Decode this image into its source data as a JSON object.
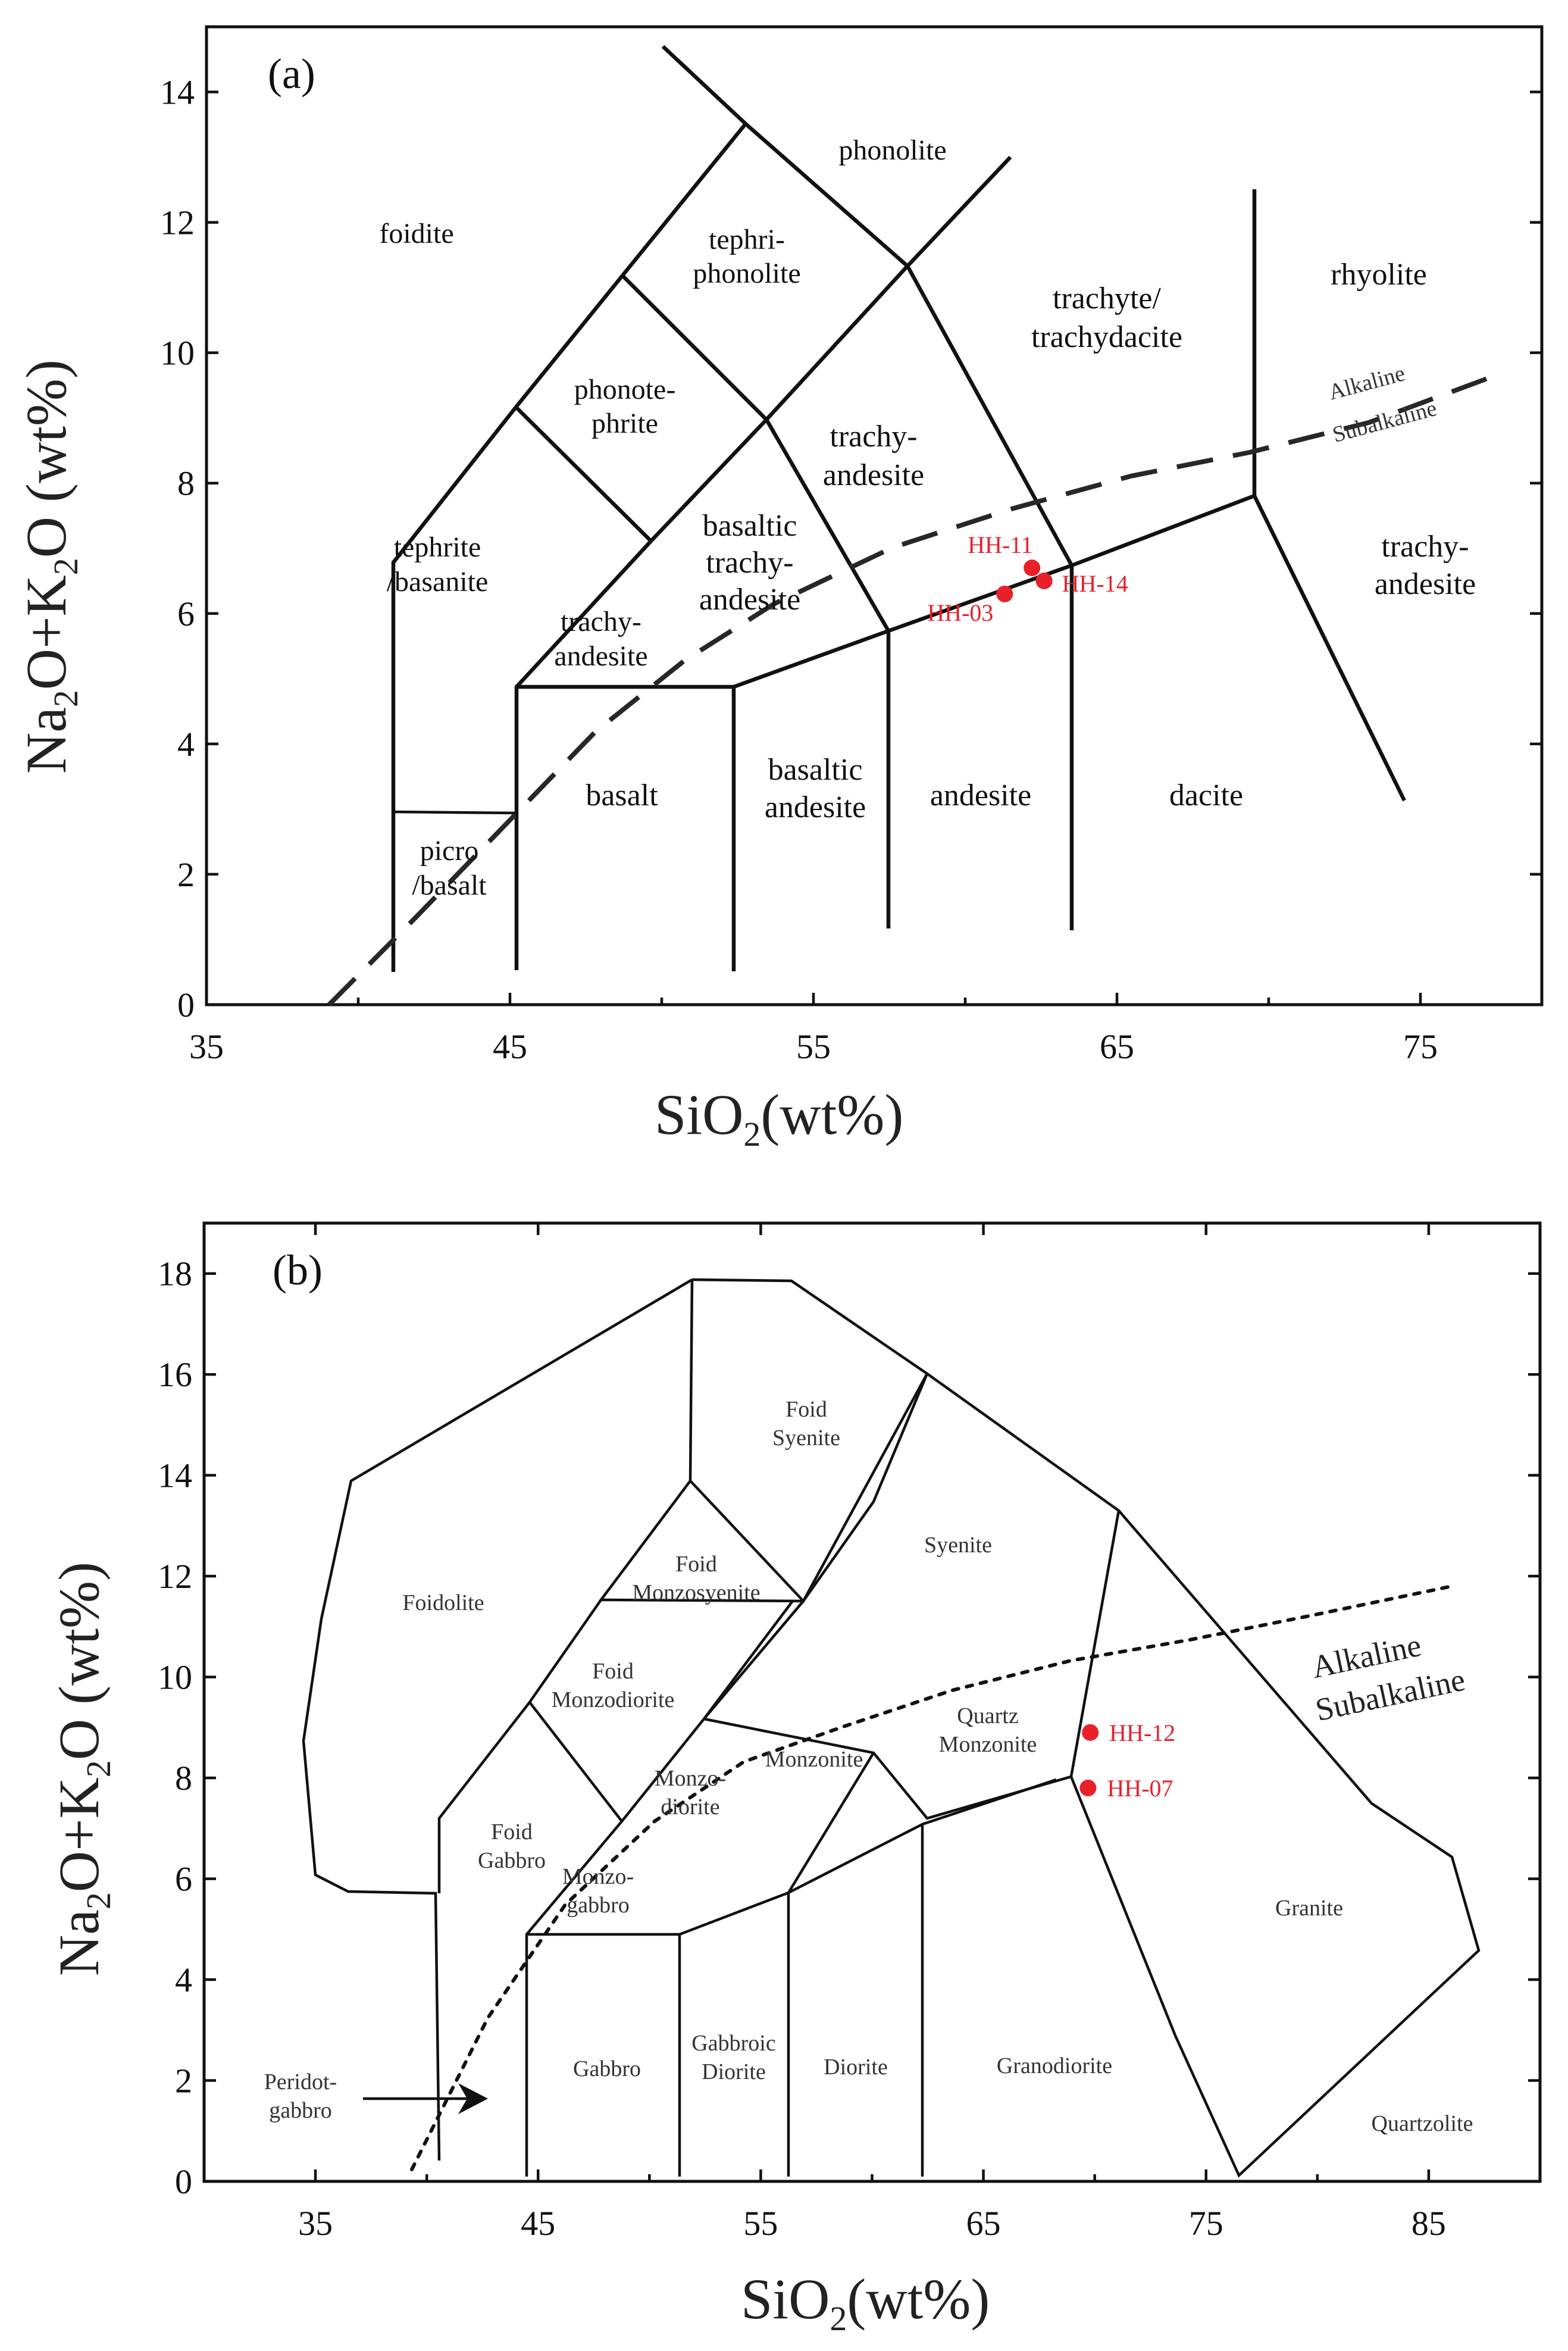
{
  "chart_data": [
    {
      "type": "scatter",
      "panel": "(a)",
      "xlabel_main": "SiO",
      "xlabel_sub": "2",
      "xlabel_unit": "(wt%)",
      "ylabel": {
        "t1": "Na",
        "s1": "2",
        "t2": "O+K",
        "s2": "2",
        "t3": "O (wt%)"
      },
      "xlim": [
        35,
        79
      ],
      "ylim": [
        0,
        15
      ],
      "xticks": [
        35,
        45,
        55,
        65,
        75
      ],
      "yticks": [
        0,
        2,
        4,
        6,
        8,
        10,
        12,
        14
      ],
      "regions": {
        "foidite": "foidite",
        "tephriphonolite_1": "tephri-",
        "tephriphonolite_2": "phonolite",
        "phonolite": "phonolite",
        "phonotephrite_1": "phonote-",
        "phonotephrite_2": "phrite",
        "trachyte_1": "trachyte/",
        "trachyte_2": "trachydacite",
        "rhyolite": "rhyolite",
        "trachyandesite_1": "trachy-",
        "trachyandesite_2": "andesite",
        "bta_1": "basaltic",
        "bta_2": "trachy-",
        "bta_3": "andesite",
        "tephrite_1": "tephrite",
        "tephrite_2": "/basanite",
        "trachybasalt_1": "trachy-",
        "trachybasalt_2": "andesite",
        "trachyandesite_r_1": "trachy-",
        "trachyandesite_r_2": "andesite",
        "basalt": "basalt",
        "basaltic_andesite_1": "basaltic",
        "basaltic_andesite_2": "andesite",
        "andesite": "andesite",
        "dacite": "dacite",
        "picro_1": "picro",
        "picro_2": "/basalt"
      },
      "series_labels": {
        "alkaline": "Alkaline",
        "subalkaline": "Subalkaline"
      },
      "samples": [
        {
          "name": "HH-11",
          "x": 62.2,
          "y": 6.7
        },
        {
          "name": "HH-14",
          "x": 62.6,
          "y": 6.5
        },
        {
          "name": "HH-03",
          "x": 61.3,
          "y": 6.3
        }
      ]
    },
    {
      "type": "scatter",
      "panel": "(b)",
      "xlabel_main": "SiO",
      "xlabel_sub": "2",
      "xlabel_unit": "(wt%)",
      "ylabel": {
        "t1": "Na",
        "s1": "2",
        "t2": "O+K",
        "s2": "2",
        "t3": "O (wt%)"
      },
      "xlim": [
        30,
        90
      ],
      "ylim": [
        0,
        19
      ],
      "xticks": [
        35,
        45,
        55,
        65,
        75,
        85
      ],
      "yticks": [
        0,
        2,
        4,
        6,
        8,
        10,
        12,
        14,
        16,
        18
      ],
      "regions": {
        "foid_syenite_1": "Foid",
        "foid_syenite_2": "Syenite",
        "syenite": "Syenite",
        "foidolite": "Foidolite",
        "foid_monzosyenite_1": "Foid",
        "foid_monzosyenite_2": "Monzosyenite",
        "foid_monzodiorite_1": "Foid",
        "foid_monzodiorite_2": "Monzodiorite",
        "quartz_monzonite_1": "Quartz",
        "quartz_monzonite_2": "Monzonite",
        "monzonite": "Monzonite",
        "foid_gabbro_1": "Foid",
        "foid_gabbro_2": "Gabbro",
        "monzodiorite_1": "Monzo-",
        "monzodiorite_2": "diorite",
        "monzogabbro_1": "Monzo-",
        "monzogabbro_2": "gabbro",
        "granite": "Granite",
        "gabbro": "Gabbro",
        "gabbroic_diorite_1": "Gabbroic",
        "gabbroic_diorite_2": "Diorite",
        "diorite": "Diorite",
        "granodiorite": "Granodiorite",
        "quartzolite": "Quartzolite",
        "peridotgabbro_1": "Peridot-",
        "peridotgabbro_2": "gabbro"
      },
      "series_labels": {
        "alkaline": "Alkaline",
        "subalkaline": "Subalkaline"
      },
      "samples": [
        {
          "name": "HH-12",
          "x": 69.8,
          "y": 8.9
        },
        {
          "name": "HH-07",
          "x": 69.7,
          "y": 7.8
        }
      ]
    }
  ]
}
